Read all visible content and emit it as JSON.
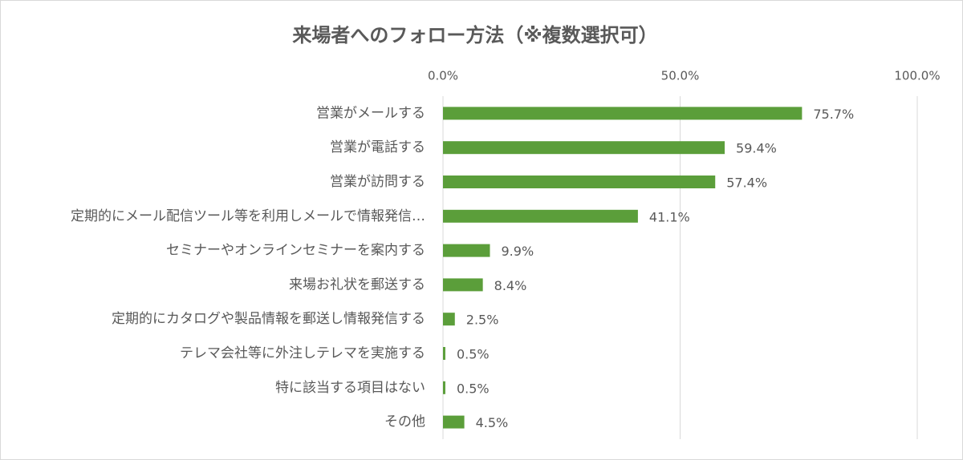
{
  "chart_data": {
    "type": "bar",
    "orientation": "horizontal",
    "title": "来場者へのフォロー方法（※複数選択可）",
    "categories": [
      "営業がメールする",
      "営業が電話する",
      "営業が訪問する",
      "定期的にメール配信ツール等を利用しメールで情報発信…",
      "セミナーやオンラインセミナーを案内する",
      "来場お礼状を郵送する",
      "定期的にカタログや製品情報を郵送し情報発信する",
      "テレマ会社等に外注しテレマを実施する",
      "特に該当する項目はない",
      "その他"
    ],
    "values": [
      75.7,
      59.4,
      57.4,
      41.1,
      9.9,
      8.4,
      2.5,
      0.5,
      0.5,
      4.5
    ],
    "value_labels": [
      "75.7%",
      "59.4%",
      "57.4%",
      "41.1%",
      "9.9%",
      "8.4%",
      "2.5%",
      "0.5%",
      "0.5%",
      "4.5%"
    ],
    "color": "#5b9e3a",
    "xlim": [
      0,
      100
    ],
    "xticks": [
      {
        "value": 0,
        "label": "0.0%"
      },
      {
        "value": 50,
        "label": "50.0%"
      },
      {
        "value": 100,
        "label": "100.0%"
      }
    ],
    "grid": true
  }
}
